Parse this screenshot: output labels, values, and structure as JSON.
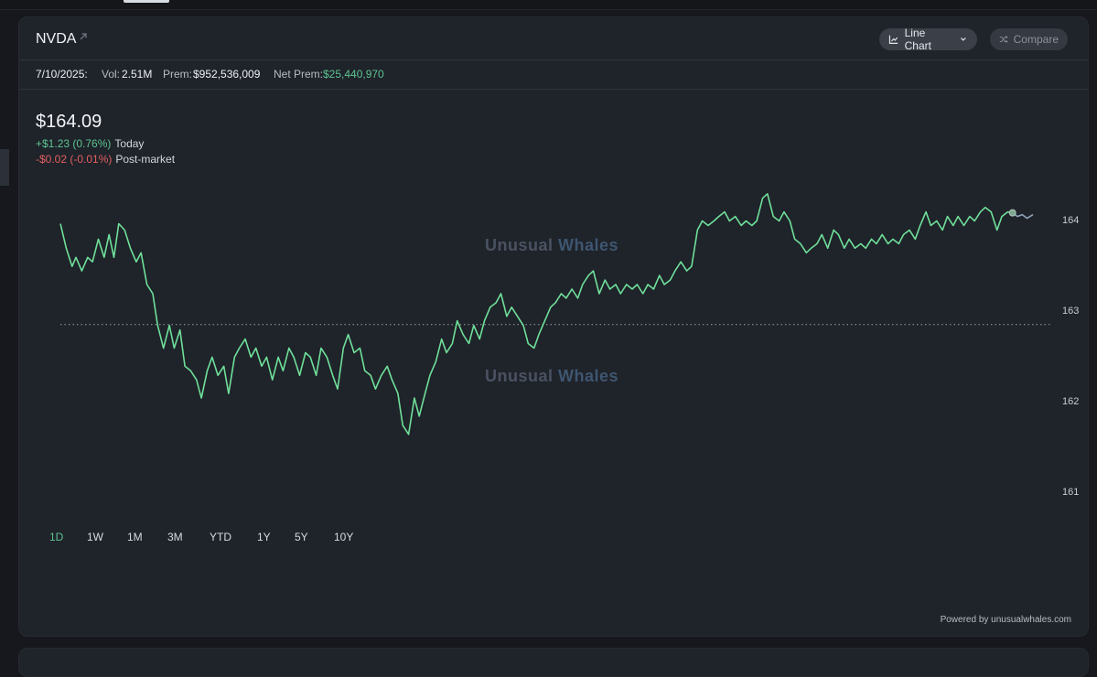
{
  "header": {
    "ticker": "NVDA",
    "chart_type_label": "Line Chart",
    "compare_label": "Compare"
  },
  "stats": {
    "date": "7/10/2025:",
    "vol_label": "Vol:",
    "vol_value": "2.51M",
    "prem_label": "Prem:",
    "prem_value": "$952,536,009",
    "net_prem_label": "Net Prem:",
    "net_prem_value": "$25,440,970"
  },
  "quote": {
    "price": "$164.09",
    "today_change": "+$1.23 (0.76%)",
    "today_label": "Today",
    "post_change": "-$0.02 (-0.01%)",
    "post_label": "Post-market"
  },
  "watermark": {
    "word1": "Unusual",
    "word2": "Whales"
  },
  "ranges": [
    {
      "label": "1D",
      "active": true
    },
    {
      "label": "1W",
      "active": false
    },
    {
      "label": "1M",
      "active": false
    },
    {
      "label": "3M",
      "active": false
    },
    {
      "label": "YTD",
      "active": false
    },
    {
      "label": "1Y",
      "active": false
    },
    {
      "label": "5Y",
      "active": false
    },
    {
      "label": "10Y",
      "active": false
    }
  ],
  "footer": {
    "powered": "Powered by unusualwhales.com"
  },
  "colors": {
    "line": "#6fe09a",
    "post_line": "#8fa3b8",
    "accent_green": "#5cc490",
    "accent_red": "#e26060"
  },
  "chart_data": {
    "type": "line",
    "ylim": [
      160.6,
      164.6
    ],
    "yticks": [
      161,
      162,
      163,
      164
    ],
    "baseline": 162.86,
    "x_range": [
      0,
      100
    ],
    "series": [
      {
        "values": [
          [
            0,
            163.97
          ],
          [
            0.6,
            163.7
          ],
          [
            1.2,
            163.5
          ],
          [
            1.6,
            163.6
          ],
          [
            2.2,
            163.45
          ],
          [
            2.8,
            163.6
          ],
          [
            3.3,
            163.55
          ],
          [
            3.9,
            163.8
          ],
          [
            4.5,
            163.6
          ],
          [
            5,
            163.85
          ],
          [
            5.5,
            163.6
          ],
          [
            6,
            163.97
          ],
          [
            6.6,
            163.9
          ],
          [
            7.2,
            163.7
          ],
          [
            7.8,
            163.55
          ],
          [
            8.3,
            163.65
          ],
          [
            8.9,
            163.3
          ],
          [
            9.5,
            163.2
          ],
          [
            10,
            162.85
          ],
          [
            10.6,
            162.6
          ],
          [
            11.2,
            162.85
          ],
          [
            11.7,
            162.6
          ],
          [
            12.3,
            162.8
          ],
          [
            12.8,
            162.4
          ],
          [
            13.4,
            162.35
          ],
          [
            14,
            162.25
          ],
          [
            14.5,
            162.05
          ],
          [
            15.1,
            162.35
          ],
          [
            15.6,
            162.5
          ],
          [
            16.2,
            162.3
          ],
          [
            16.8,
            162.4
          ],
          [
            17.3,
            162.1
          ],
          [
            17.9,
            162.5
          ],
          [
            18.4,
            162.6
          ],
          [
            19,
            162.7
          ],
          [
            19.6,
            162.5
          ],
          [
            20.1,
            162.6
          ],
          [
            20.7,
            162.4
          ],
          [
            21.2,
            162.5
          ],
          [
            21.8,
            162.25
          ],
          [
            22.4,
            162.5
          ],
          [
            22.9,
            162.35
          ],
          [
            23.5,
            162.6
          ],
          [
            24,
            162.5
          ],
          [
            24.6,
            162.3
          ],
          [
            25.2,
            162.55
          ],
          [
            25.7,
            162.5
          ],
          [
            26.3,
            162.3
          ],
          [
            26.8,
            162.6
          ],
          [
            27.4,
            162.5
          ],
          [
            28,
            162.3
          ],
          [
            28.5,
            162.15
          ],
          [
            29.1,
            162.6
          ],
          [
            29.6,
            162.75
          ],
          [
            30.2,
            162.55
          ],
          [
            30.8,
            162.6
          ],
          [
            31.3,
            162.35
          ],
          [
            31.9,
            162.3
          ],
          [
            32.4,
            162.15
          ],
          [
            33,
            162.3
          ],
          [
            33.6,
            162.4
          ],
          [
            34.1,
            162.25
          ],
          [
            34.7,
            162.1
          ],
          [
            35.2,
            161.75
          ],
          [
            35.8,
            161.65
          ],
          [
            36.4,
            162.05
          ],
          [
            36.9,
            161.85
          ],
          [
            37.5,
            162.1
          ],
          [
            38,
            162.3
          ],
          [
            38.6,
            162.45
          ],
          [
            39.2,
            162.7
          ],
          [
            39.7,
            162.55
          ],
          [
            40.3,
            162.65
          ],
          [
            40.8,
            162.9
          ],
          [
            41.4,
            162.75
          ],
          [
            42,
            162.65
          ],
          [
            42.5,
            162.85
          ],
          [
            43.1,
            162.7
          ],
          [
            43.6,
            162.9
          ],
          [
            44.2,
            163.05
          ],
          [
            44.8,
            163.1
          ],
          [
            45.3,
            163.2
          ],
          [
            45.9,
            162.95
          ],
          [
            46.4,
            163.05
          ],
          [
            47,
            162.95
          ],
          [
            47.6,
            162.85
          ],
          [
            48.1,
            162.65
          ],
          [
            48.7,
            162.6
          ],
          [
            49.2,
            162.75
          ],
          [
            49.8,
            162.9
          ],
          [
            50.4,
            163.05
          ],
          [
            50.9,
            163.1
          ],
          [
            51.5,
            163.2
          ],
          [
            52,
            163.15
          ],
          [
            52.6,
            163.25
          ],
          [
            53.2,
            163.15
          ],
          [
            53.7,
            163.3
          ],
          [
            54.3,
            163.4
          ],
          [
            54.8,
            163.45
          ],
          [
            55.4,
            163.2
          ],
          [
            56,
            163.35
          ],
          [
            56.5,
            163.25
          ],
          [
            57.1,
            163.3
          ],
          [
            57.6,
            163.2
          ],
          [
            58.2,
            163.3
          ],
          [
            58.8,
            163.25
          ],
          [
            59.3,
            163.3
          ],
          [
            59.9,
            163.2
          ],
          [
            60.4,
            163.3
          ],
          [
            61,
            163.25
          ],
          [
            61.6,
            163.4
          ],
          [
            62.1,
            163.3
          ],
          [
            62.7,
            163.35
          ],
          [
            63.2,
            163.45
          ],
          [
            63.8,
            163.55
          ],
          [
            64.4,
            163.45
          ],
          [
            64.9,
            163.5
          ],
          [
            65.5,
            163.9
          ],
          [
            66,
            164.0
          ],
          [
            66.6,
            163.95
          ],
          [
            67.2,
            164.0
          ],
          [
            67.7,
            164.05
          ],
          [
            68.3,
            164.1
          ],
          [
            68.8,
            164.0
          ],
          [
            69.4,
            164.05
          ],
          [
            70,
            163.95
          ],
          [
            70.5,
            164.0
          ],
          [
            71.1,
            163.95
          ],
          [
            71.6,
            164.0
          ],
          [
            72.2,
            164.25
          ],
          [
            72.7,
            164.3
          ],
          [
            73.3,
            164.05
          ],
          [
            73.9,
            164.0
          ],
          [
            74.4,
            164.1
          ],
          [
            75,
            164.0
          ],
          [
            75.5,
            163.8
          ],
          [
            76.1,
            163.75
          ],
          [
            76.7,
            163.65
          ],
          [
            77.2,
            163.7
          ],
          [
            77.8,
            163.75
          ],
          [
            78.3,
            163.85
          ],
          [
            78.9,
            163.7
          ],
          [
            79.5,
            163.9
          ],
          [
            80,
            163.85
          ],
          [
            80.6,
            163.7
          ],
          [
            81.1,
            163.8
          ],
          [
            81.7,
            163.7
          ],
          [
            82.3,
            163.75
          ],
          [
            82.8,
            163.7
          ],
          [
            83.4,
            163.8
          ],
          [
            83.9,
            163.75
          ],
          [
            84.5,
            163.85
          ],
          [
            85.1,
            163.75
          ],
          [
            85.6,
            163.8
          ],
          [
            86.2,
            163.75
          ],
          [
            86.7,
            163.85
          ],
          [
            87.3,
            163.9
          ],
          [
            87.9,
            163.8
          ],
          [
            88.4,
            163.95
          ],
          [
            89,
            164.1
          ],
          [
            89.5,
            163.95
          ],
          [
            90.1,
            164.0
          ],
          [
            90.7,
            163.9
          ],
          [
            91.2,
            164.05
          ],
          [
            91.8,
            163.95
          ],
          [
            92.3,
            164.05
          ],
          [
            92.9,
            163.95
          ],
          [
            93.5,
            164.05
          ],
          [
            94,
            164.0
          ],
          [
            94.6,
            164.1
          ],
          [
            95.1,
            164.15
          ],
          [
            95.7,
            164.1
          ],
          [
            96.3,
            163.9
          ],
          [
            96.8,
            164.05
          ],
          [
            97.4,
            164.1
          ],
          [
            97.9,
            164.09
          ]
        ]
      },
      {
        "values": [
          [
            97.9,
            164.09
          ],
          [
            98.4,
            164.05
          ],
          [
            98.9,
            164.07
          ],
          [
            99.4,
            164.03
          ],
          [
            100,
            164.07
          ]
        ]
      }
    ]
  }
}
